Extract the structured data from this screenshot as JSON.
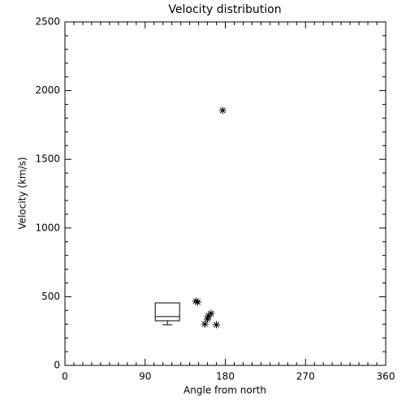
{
  "chart_data": {
    "type": "scatter",
    "title": "Velocity distribution",
    "x_label": "Angle from north",
    "y_label": "Velocity (km/s)",
    "x": [
      147,
      149,
      157,
      160,
      161,
      164,
      170,
      177
    ],
    "values": [
      467,
      461,
      301,
      337,
      360,
      378,
      296,
      1856
    ],
    "color": "#000000",
    "box": {
      "position": 115,
      "min": 296,
      "q1": 325,
      "median": 355,
      "q3": 455,
      "max": 455
    },
    "xlim": [
      0,
      360
    ],
    "xticks": [
      0,
      90,
      180,
      270,
      360
    ],
    "ylim": [
      0,
      2500
    ],
    "yticks": [
      0,
      500,
      1000,
      1500,
      2000,
      2500
    ]
  }
}
